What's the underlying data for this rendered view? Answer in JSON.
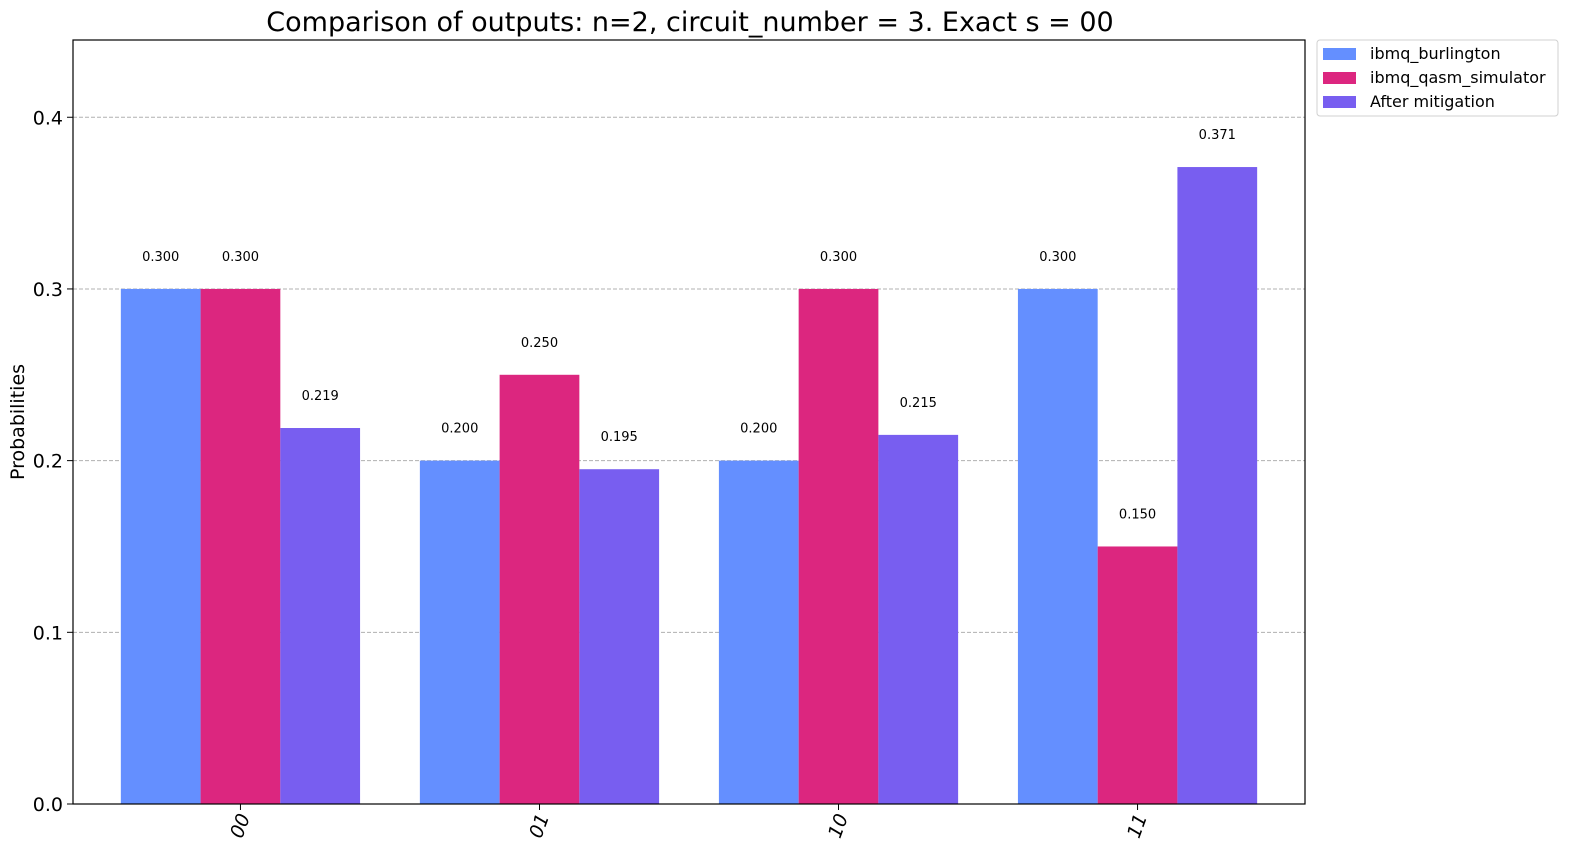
{
  "chart_data": {
    "type": "bar",
    "title": "Comparison of outputs: n=2, circuit_number = 3. Exact s = 00",
    "xlabel": "",
    "ylabel": "Probabilities",
    "categories": [
      "00",
      "01",
      "10",
      "11"
    ],
    "ylim": [
      0,
      0.445
    ],
    "yticks": [
      0.0,
      0.1,
      0.2,
      0.3,
      0.4
    ],
    "ytick_labels": [
      "0.0",
      "0.1",
      "0.2",
      "0.3",
      "0.4"
    ],
    "grid": "y-dashed",
    "legend_position": "outside-top-right",
    "series": [
      {
        "name": "ibmq_burlington",
        "color": "#648fff",
        "values": [
          0.3,
          0.2,
          0.2,
          0.3
        ],
        "labels": [
          "0.300",
          "0.200",
          "0.200",
          "0.300"
        ]
      },
      {
        "name": "ibmq_qasm_simulator",
        "color": "#dc267f",
        "values": [
          0.3,
          0.25,
          0.3,
          0.15
        ],
        "labels": [
          "0.300",
          "0.250",
          "0.300",
          "0.150"
        ]
      },
      {
        "name": "After mitigation",
        "color": "#785ef0",
        "values": [
          0.219,
          0.195,
          0.215,
          0.371
        ],
        "labels": [
          "0.219",
          "0.195",
          "0.215",
          "0.371"
        ]
      }
    ]
  }
}
